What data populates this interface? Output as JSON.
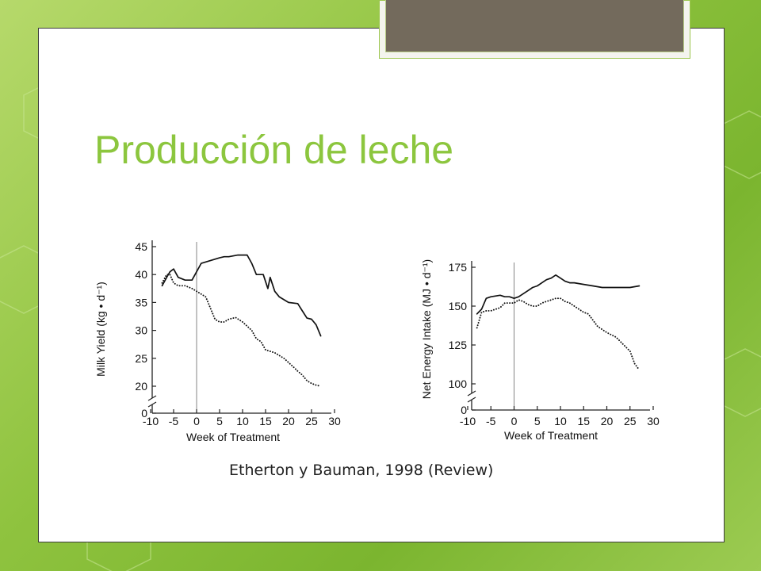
{
  "slide": {
    "title": "Producción de leche",
    "caption": "Etherton y Bauman, 1998 (Review)"
  },
  "colors": {
    "title": "#8cc63e",
    "background_green": "#8fc33f",
    "tab": "#736a5c"
  },
  "chart_data": [
    {
      "type": "line",
      "xlabel": "Week of Treatment",
      "ylabel": "Milk Yield (kg • d⁻¹)",
      "xlim": [
        -10,
        30
      ],
      "ylim": [
        0,
        45
      ],
      "x_ticks": [
        -10,
        -5,
        0,
        5,
        10,
        15,
        20,
        25,
        30
      ],
      "y_ticks": [
        0,
        20,
        25,
        30,
        35,
        40,
        45
      ],
      "axis_break": true,
      "vertical_reference_x": 0,
      "series": [
        {
          "style": "solid",
          "x": [
            -7.5,
            -6.5,
            -5.8,
            -5,
            -4,
            -2.5,
            -1,
            0,
            1,
            3,
            5,
            6,
            7,
            9,
            11,
            12,
            13,
            14.5,
            15.5,
            16,
            17,
            18,
            20,
            22,
            23,
            24,
            25,
            26,
            27
          ],
          "y": [
            38,
            39.5,
            40.5,
            41,
            39.5,
            39,
            39,
            40.5,
            42,
            42.5,
            43,
            43.2,
            43.2,
            43.5,
            43.5,
            42,
            40,
            40,
            37.5,
            39.5,
            37,
            36,
            35,
            34.8,
            33.5,
            32.2,
            32,
            31,
            29
          ]
        },
        {
          "style": "dotted",
          "x": [
            -7.5,
            -6.5,
            -5.8,
            -5,
            -4,
            -2.5,
            -1,
            0,
            1,
            2,
            3,
            4,
            5,
            6,
            7,
            8.5,
            10,
            12,
            13,
            14,
            15,
            17,
            19,
            21,
            22,
            23,
            24,
            25,
            26,
            27
          ],
          "y": [
            38.5,
            40,
            40,
            38.5,
            38,
            38,
            37.5,
            37,
            36.5,
            36,
            34,
            32,
            31.5,
            31.5,
            32,
            32.3,
            31.5,
            30,
            28.5,
            28,
            26.5,
            26,
            25,
            23.5,
            22.7,
            22,
            21,
            20.5,
            20.2,
            20
          ]
        }
      ]
    },
    {
      "type": "line",
      "xlabel": "Week of Treatment",
      "ylabel": "Net Energy Intake (MJ • d⁻¹)",
      "xlim": [
        -10,
        30
      ],
      "ylim": [
        0,
        175
      ],
      "x_ticks": [
        -10,
        -5,
        0,
        5,
        10,
        15,
        20,
        25,
        30
      ],
      "y_ticks": [
        0,
        100,
        125,
        150,
        175
      ],
      "axis_break": true,
      "vertical_reference_x": 0,
      "series": [
        {
          "style": "solid",
          "x": [
            -8,
            -7,
            -6,
            -5,
            -3,
            -2,
            -1,
            0,
            1,
            2,
            3,
            4,
            5,
            6,
            7,
            8,
            9,
            10,
            11,
            12,
            13,
            15,
            17,
            19,
            20,
            22,
            25,
            27
          ],
          "y": [
            145,
            148,
            155,
            156,
            157,
            156,
            156,
            155,
            156,
            158,
            160,
            162,
            163,
            165,
            167,
            168,
            170,
            168,
            166,
            165,
            165,
            164,
            163,
            162,
            162,
            162,
            162,
            163
          ]
        },
        {
          "style": "dotted",
          "x": [
            -8,
            -7,
            -6,
            -5,
            -3,
            -2,
            -1,
            0,
            1,
            2,
            3,
            4,
            5,
            6,
            7,
            8,
            9,
            10,
            11,
            12,
            13,
            14,
            15,
            16,
            17,
            18,
            19,
            20,
            22,
            24,
            25,
            26,
            27
          ],
          "y": [
            136,
            146,
            147,
            147,
            149,
            152,
            152,
            152,
            154,
            153,
            151,
            150,
            150,
            152,
            153,
            154,
            155,
            155,
            153,
            152,
            150,
            148,
            146,
            145,
            141,
            137,
            135,
            133,
            130,
            124,
            121,
            113,
            109
          ]
        }
      ]
    }
  ]
}
